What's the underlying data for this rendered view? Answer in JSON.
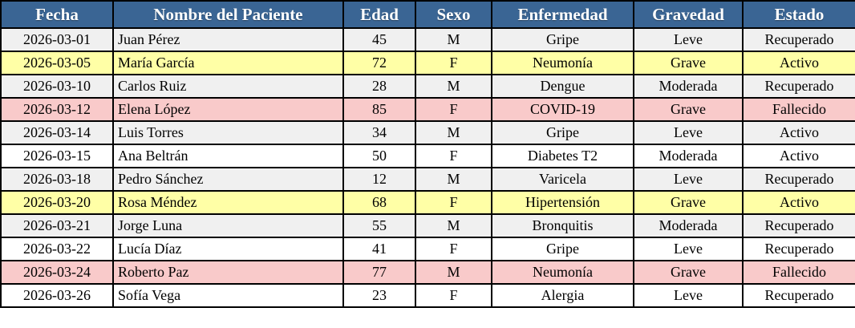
{
  "table": {
    "columns": [
      {
        "key": "fecha",
        "label": "Fecha",
        "align": "center"
      },
      {
        "key": "nombre",
        "label": "Nombre del Paciente",
        "align": "left"
      },
      {
        "key": "edad",
        "label": "Edad",
        "align": "center"
      },
      {
        "key": "sexo",
        "label": "Sexo",
        "align": "center"
      },
      {
        "key": "enfermedad",
        "label": "Enfermedad",
        "align": "center"
      },
      {
        "key": "gravedad",
        "label": "Gravedad",
        "align": "center"
      },
      {
        "key": "estado",
        "label": "Estado",
        "align": "center"
      }
    ],
    "rows": [
      {
        "fecha": "2026-03-01",
        "nombre": "Juan Pérez",
        "edad": "45",
        "sexo": "M",
        "enfermedad": "Gripe",
        "gravedad": "Leve",
        "estado": "Recuperado",
        "variant": "gray"
      },
      {
        "fecha": "2026-03-05",
        "nombre": "María García",
        "edad": "72",
        "sexo": "F",
        "enfermedad": "Neumonía",
        "gravedad": "Grave",
        "estado": "Activo",
        "variant": "yellow"
      },
      {
        "fecha": "2026-03-10",
        "nombre": "Carlos Ruiz",
        "edad": "28",
        "sexo": "M",
        "enfermedad": "Dengue",
        "gravedad": "Moderada",
        "estado": "Recuperado",
        "variant": "gray"
      },
      {
        "fecha": "2026-03-12",
        "nombre": "Elena López",
        "edad": "85",
        "sexo": "F",
        "enfermedad": "COVID-19",
        "gravedad": "Grave",
        "estado": "Fallecido",
        "variant": "pink"
      },
      {
        "fecha": "2026-03-14",
        "nombre": "Luis Torres",
        "edad": "34",
        "sexo": "M",
        "enfermedad": "Gripe",
        "gravedad": "Leve",
        "estado": "Activo",
        "variant": "gray"
      },
      {
        "fecha": "2026-03-15",
        "nombre": "Ana Beltrán",
        "edad": "50",
        "sexo": "F",
        "enfermedad": "Diabetes T2",
        "gravedad": "Moderada",
        "estado": "Activo",
        "variant": "white"
      },
      {
        "fecha": "2026-03-18",
        "nombre": "Pedro Sánchez",
        "edad": "12",
        "sexo": "M",
        "enfermedad": "Varicela",
        "gravedad": "Leve",
        "estado": "Recuperado",
        "variant": "gray"
      },
      {
        "fecha": "2026-03-20",
        "nombre": "Rosa Méndez",
        "edad": "68",
        "sexo": "F",
        "enfermedad": "Hipertensión",
        "gravedad": "Grave",
        "estado": "Activo",
        "variant": "yellow"
      },
      {
        "fecha": "2026-03-21",
        "nombre": "Jorge Luna",
        "edad": "55",
        "sexo": "M",
        "enfermedad": "Bronquitis",
        "gravedad": "Moderada",
        "estado": "Recuperado",
        "variant": "gray"
      },
      {
        "fecha": "2026-03-22",
        "nombre": "Lucía Díaz",
        "edad": "41",
        "sexo": "F",
        "enfermedad": "Gripe",
        "gravedad": "Leve",
        "estado": "Recuperado",
        "variant": "white"
      },
      {
        "fecha": "2026-03-24",
        "nombre": "Roberto Paz",
        "edad": "77",
        "sexo": "M",
        "enfermedad": "Neumonía",
        "gravedad": "Grave",
        "estado": "Fallecido",
        "variant": "pink"
      },
      {
        "fecha": "2026-03-26",
        "nombre": "Sofía Vega",
        "edad": "23",
        "sexo": "F",
        "enfermedad": "Alergia",
        "gravedad": "Leve",
        "estado": "Recuperado",
        "variant": "white"
      }
    ]
  },
  "colors": {
    "header_bg": "#3a6594",
    "header_text": "#ffffff",
    "border": "#000000",
    "row_variants": {
      "gray": "#f0f0f0",
      "white": "#ffffff",
      "yellow": "#ffffa6",
      "pink": "#f9caca"
    }
  }
}
